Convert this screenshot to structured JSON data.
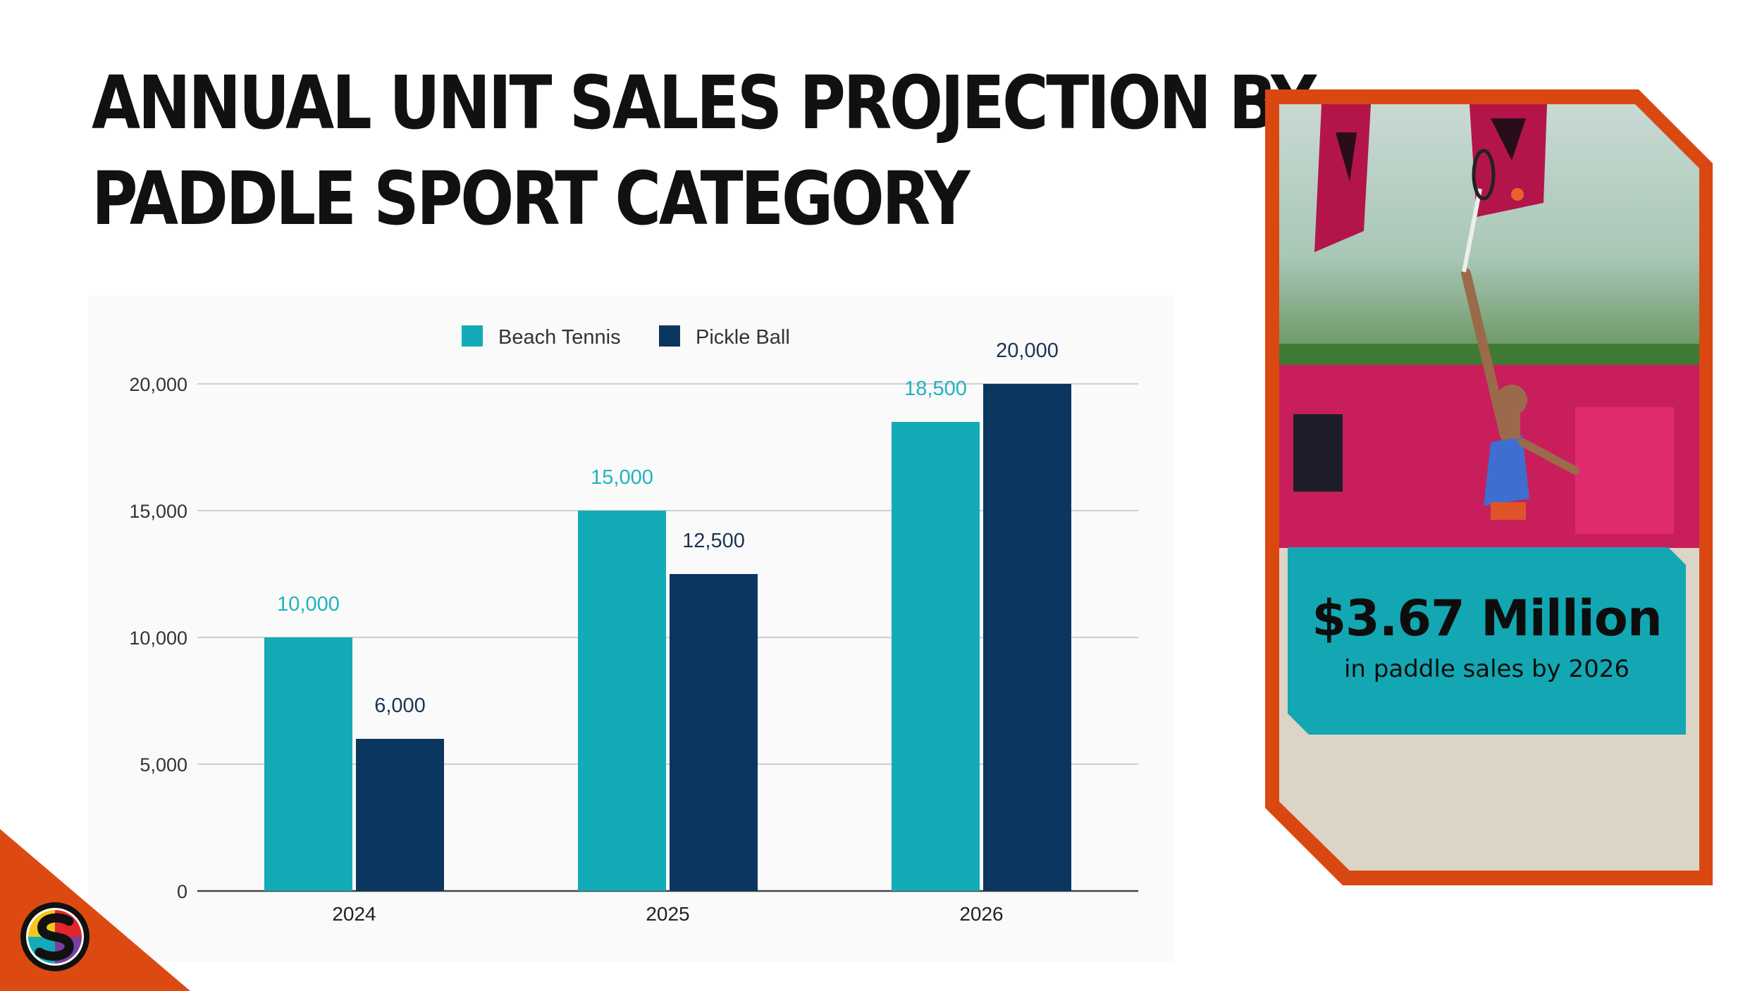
{
  "slide": {
    "title_line1": "ANNUAL UNIT SALES PROJECTION BY",
    "title_line2": "PADDLE SPORT CATEGORY"
  },
  "highlight": {
    "value": "$3.67 Million",
    "caption": "in paddle sales by 2026"
  },
  "colors": {
    "beach_tennis": "#13abb7",
    "pickle_ball": "#0b3660",
    "accent_orange": "#d94810",
    "banner_teal": "#13a7b3"
  },
  "chart_data": {
    "type": "bar",
    "title": "",
    "xlabel": "",
    "ylabel": "",
    "categories": [
      "2024",
      "2025",
      "2026"
    ],
    "series": [
      {
        "name": "Beach Tennis",
        "values": [
          10000,
          15000,
          18500
        ],
        "labels": [
          "10,000",
          "15,000",
          "18,500"
        ],
        "color": "#13abb7",
        "label_color": "#20b3bd"
      },
      {
        "name": "Pickle Ball",
        "values": [
          6000,
          12500,
          20000
        ],
        "labels": [
          "6,000",
          "12,500",
          "20,000"
        ],
        "color": "#0b3660",
        "label_color": "#1b3553"
      }
    ],
    "ylim": [
      0,
      20000
    ],
    "yticks": [
      0,
      5000,
      10000,
      15000,
      20000
    ],
    "ytick_labels": [
      "0",
      "5,000",
      "10,000",
      "15,000",
      "20,000"
    ],
    "grid": true,
    "legend": "top-center"
  }
}
